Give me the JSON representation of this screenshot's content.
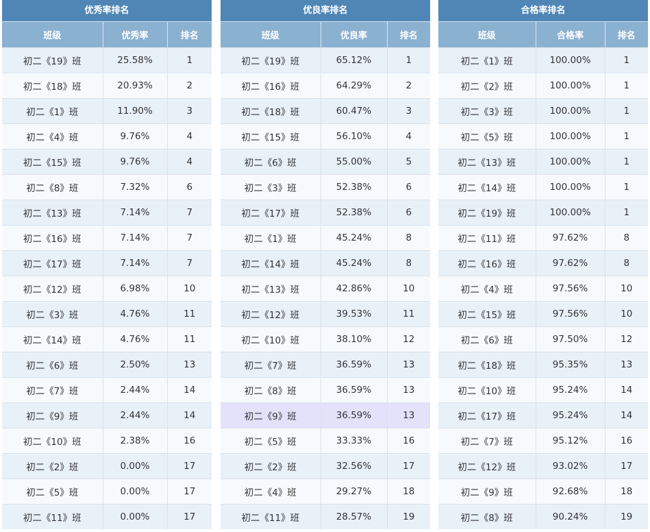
{
  "panels": [
    {
      "title": "优秀率排名",
      "headers": [
        "班级",
        "优秀率",
        "排名"
      ],
      "rows": [
        [
          "初二《19》班",
          "25.58%",
          "1"
        ],
        [
          "初二《18》班",
          "20.93%",
          "2"
        ],
        [
          "初二《1》班",
          "11.90%",
          "3"
        ],
        [
          "初二《4》班",
          "9.76%",
          "4"
        ],
        [
          "初二《15》班",
          "9.76%",
          "4"
        ],
        [
          "初二《8》班",
          "7.32%",
          "6"
        ],
        [
          "初二《13》班",
          "7.14%",
          "7"
        ],
        [
          "初二《16》班",
          "7.14%",
          "7"
        ],
        [
          "初二《17》班",
          "7.14%",
          "7"
        ],
        [
          "初二《12》班",
          "6.98%",
          "10"
        ],
        [
          "初二《3》班",
          "4.76%",
          "11"
        ],
        [
          "初二《14》班",
          "4.76%",
          "11"
        ],
        [
          "初二《6》班",
          "2.50%",
          "13"
        ],
        [
          "初二《7》班",
          "2.44%",
          "14"
        ],
        [
          "初二《9》班",
          "2.44%",
          "14"
        ],
        [
          "初二《10》班",
          "2.38%",
          "16"
        ],
        [
          "初二《2》班",
          "0.00%",
          "17"
        ],
        [
          "初二《5》班",
          "0.00%",
          "17"
        ],
        [
          "初二《11》班",
          "0.00%",
          "17"
        ]
      ]
    },
    {
      "title": "优良率排名",
      "headers": [
        "班级",
        "优良率",
        "排名"
      ],
      "rows": [
        [
          "初二《19》班",
          "65.12%",
          "1"
        ],
        [
          "初二《16》班",
          "64.29%",
          "2"
        ],
        [
          "初二《18》班",
          "60.47%",
          "3"
        ],
        [
          "初二《15》班",
          "56.10%",
          "4"
        ],
        [
          "初二《6》班",
          "55.00%",
          "5"
        ],
        [
          "初二《3》班",
          "52.38%",
          "6"
        ],
        [
          "初二《17》班",
          "52.38%",
          "6"
        ],
        [
          "初二《1》班",
          "45.24%",
          "8"
        ],
        [
          "初二《14》班",
          "45.24%",
          "8"
        ],
        [
          "初二《13》班",
          "42.86%",
          "10"
        ],
        [
          "初二《12》班",
          "39.53%",
          "11"
        ],
        [
          "初二《10》班",
          "38.10%",
          "12"
        ],
        [
          "初二《7》班",
          "36.59%",
          "13"
        ],
        [
          "初二《8》班",
          "36.59%",
          "13"
        ],
        [
          "初二《9》班",
          "36.59%",
          "13"
        ],
        [
          "初二《5》班",
          "33.33%",
          "16"
        ],
        [
          "初二《2》班",
          "32.56%",
          "17"
        ],
        [
          "初二《4》班",
          "29.27%",
          "18"
        ],
        [
          "初二《11》班",
          "28.57%",
          "19"
        ]
      ],
      "highlight_row": 14,
      "highlight_color": "#e4e1fb"
    },
    {
      "title": "合格率排名",
      "headers": [
        "班级",
        "合格率",
        "排名"
      ],
      "rows": [
        [
          "初二《1》班",
          "100.00%",
          "1"
        ],
        [
          "初二《2》班",
          "100.00%",
          "1"
        ],
        [
          "初二《3》班",
          "100.00%",
          "1"
        ],
        [
          "初二《5》班",
          "100.00%",
          "1"
        ],
        [
          "初二《13》班",
          "100.00%",
          "1"
        ],
        [
          "初二《14》班",
          "100.00%",
          "1"
        ],
        [
          "初二《19》班",
          "100.00%",
          "1"
        ],
        [
          "初二《11》班",
          "97.62%",
          "8"
        ],
        [
          "初二《16》班",
          "97.62%",
          "8"
        ],
        [
          "初二《4》班",
          "97.56%",
          "10"
        ],
        [
          "初二《15》班",
          "97.56%",
          "10"
        ],
        [
          "初二《6》班",
          "97.50%",
          "12"
        ],
        [
          "初二《18》班",
          "95.35%",
          "13"
        ],
        [
          "初二《10》班",
          "95.24%",
          "14"
        ],
        [
          "初二《17》班",
          "95.24%",
          "14"
        ],
        [
          "初二《7》班",
          "95.12%",
          "16"
        ],
        [
          "初二《12》班",
          "93.02%",
          "17"
        ],
        [
          "初二《9》班",
          "92.68%",
          "18"
        ],
        [
          "初二《8》班",
          "90.24%",
          "19"
        ]
      ]
    }
  ],
  "colors": {
    "title_bg": "#4f86b6",
    "header_bg": "#8bb1d1",
    "row_odd": "#e8f0f8",
    "row_even": "#f7fafd"
  }
}
